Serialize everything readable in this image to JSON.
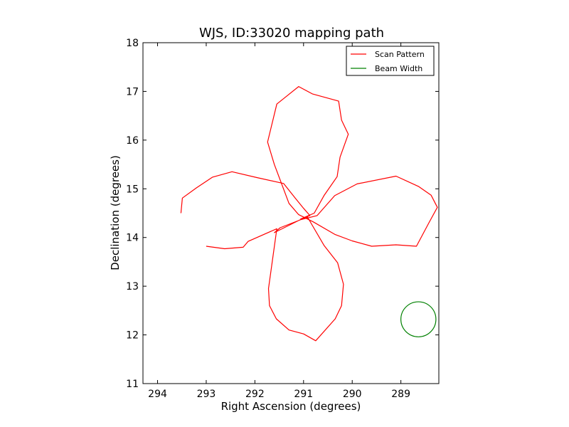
{
  "chart_data": {
    "type": "line",
    "title": "WJS, ID:33020 mapping path",
    "xlabel": "Right Ascension (degrees)",
    "ylabel": "Declination (degrees)",
    "xlim": [
      294.3,
      288.22
    ],
    "ylim": [
      11,
      18
    ],
    "x_inverted": true,
    "xticks": [
      294,
      293,
      292,
      291,
      290,
      289
    ],
    "yticks": [
      11,
      12,
      13,
      14,
      15,
      16,
      17,
      18
    ],
    "grid": false,
    "legend": {
      "placement": "top-right"
    },
    "series": [
      {
        "name": "Scan Pattern",
        "color": "#ff0000",
        "points": [
          [
            293.52,
            14.5
          ],
          [
            293.49,
            14.81
          ],
          [
            293.2,
            15.02
          ],
          [
            292.87,
            15.24
          ],
          [
            292.47,
            15.35
          ],
          [
            291.96,
            15.23
          ],
          [
            291.41,
            15.11
          ],
          [
            291.18,
            14.82
          ],
          [
            291.0,
            14.6
          ],
          [
            290.87,
            14.45
          ],
          [
            291.06,
            14.38
          ],
          [
            290.78,
            14.5
          ],
          [
            290.58,
            14.86
          ],
          [
            290.31,
            15.25
          ],
          [
            290.25,
            15.65
          ],
          [
            290.08,
            16.12
          ],
          [
            290.22,
            16.41
          ],
          [
            290.28,
            16.8
          ],
          [
            290.82,
            16.95
          ],
          [
            291.1,
            17.1
          ],
          [
            291.35,
            16.9
          ],
          [
            291.55,
            16.74
          ],
          [
            291.74,
            15.96
          ],
          [
            291.6,
            15.5
          ],
          [
            291.3,
            14.7
          ],
          [
            291.1,
            14.47
          ],
          [
            290.8,
            14.32
          ],
          [
            290.35,
            14.06
          ],
          [
            290.0,
            13.93
          ],
          [
            289.6,
            13.82
          ],
          [
            289.1,
            13.85
          ],
          [
            288.68,
            13.82
          ],
          [
            288.43,
            14.29
          ],
          [
            288.25,
            14.62
          ],
          [
            288.38,
            14.87
          ],
          [
            288.64,
            15.05
          ],
          [
            289.1,
            15.26
          ],
          [
            289.9,
            15.1
          ],
          [
            290.36,
            14.86
          ],
          [
            290.72,
            14.45
          ],
          [
            291.08,
            14.36
          ],
          [
            291.6,
            14.1
          ],
          [
            291.48,
            14.2
          ],
          [
            290.92,
            14.42
          ],
          [
            290.58,
            13.84
          ],
          [
            290.3,
            13.48
          ],
          [
            290.18,
            13.04
          ],
          [
            290.22,
            12.6
          ],
          [
            290.35,
            12.33
          ],
          [
            290.75,
            11.88
          ],
          [
            291.0,
            12.02
          ],
          [
            291.3,
            12.1
          ],
          [
            291.56,
            12.33
          ],
          [
            291.7,
            12.6
          ],
          [
            291.72,
            12.95
          ],
          [
            291.55,
            14.18
          ],
          [
            292.14,
            13.92
          ],
          [
            292.24,
            13.8
          ],
          [
            292.62,
            13.77
          ],
          [
            293.0,
            13.82
          ]
        ]
      },
      {
        "name": "Beam Width",
        "color": "#008000",
        "circle": {
          "cx": 288.64,
          "cy": 12.32,
          "radius": 0.36
        }
      }
    ]
  }
}
